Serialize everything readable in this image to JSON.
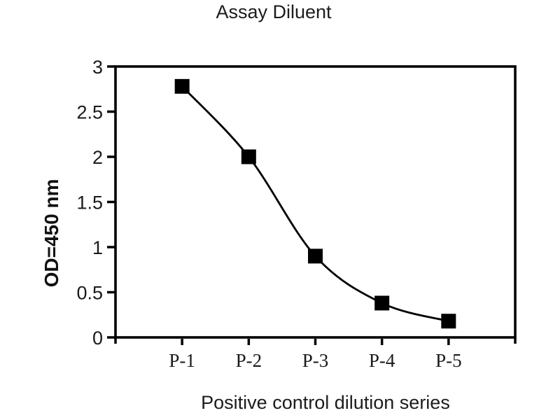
{
  "figure": {
    "background": "#ffffff",
    "axis_color": "#000000",
    "text_color": "#1a1a1a"
  },
  "chart_data": {
    "type": "line",
    "title": "Assay Diluent",
    "xlabel": "Positive control dilution series",
    "ylabel": "OD=450 nm",
    "categories": [
      "P-1",
      "P-2",
      "P-3",
      "P-4",
      "P-5"
    ],
    "values": [
      2.78,
      2.0,
      0.9,
      0.38,
      0.18
    ],
    "ylim": [
      0,
      3
    ],
    "ytick_step": 0.5,
    "ytick_labels": [
      "0",
      "0.5",
      "1",
      "1.5",
      "2",
      "2.5",
      "3"
    ],
    "grid": false,
    "legend": false,
    "smooth_line": true,
    "marker": "square",
    "line_color": "#000000",
    "marker_color": "#000000"
  }
}
